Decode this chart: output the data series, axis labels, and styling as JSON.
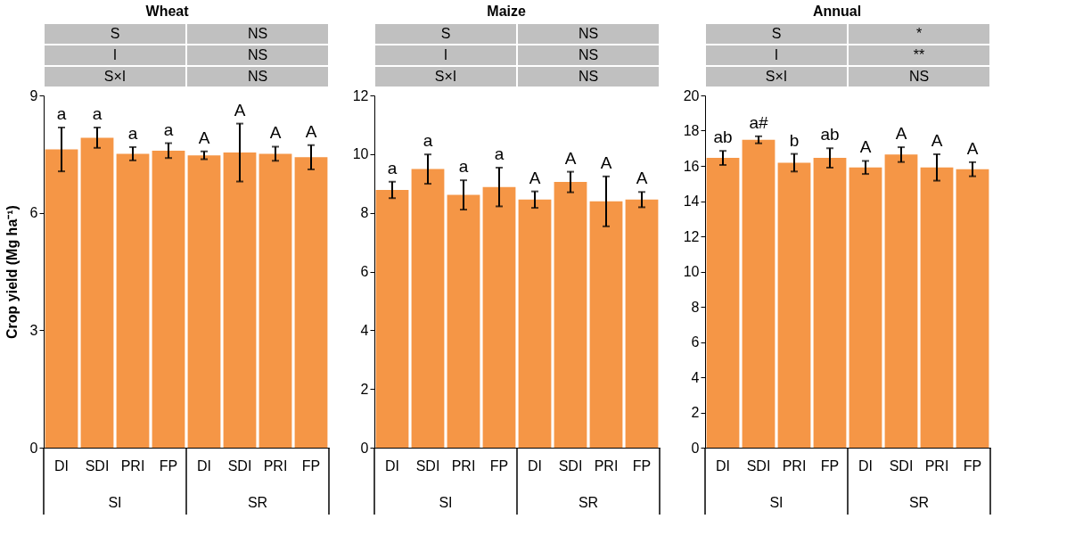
{
  "chart_data": [
    {
      "type": "bar",
      "title": "Wheat",
      "ylabel": "Crop yield (Mg ha⁻¹)",
      "categories": [
        "DI",
        "SDI",
        "PRI",
        "FP",
        "DI",
        "SDI",
        "PRI",
        "FP"
      ],
      "color": "#f59646",
      "values": [
        7.62,
        7.92,
        7.51,
        7.59,
        7.47,
        7.54,
        7.51,
        7.42
      ],
      "errors": [
        0.56,
        0.26,
        0.17,
        0.19,
        0.1,
        0.74,
        0.18,
        0.31
      ],
      "value_labels": [
        "a",
        "a",
        "a",
        "a",
        "A",
        "A",
        "A",
        "A"
      ],
      "ylim": [
        0,
        9
      ],
      "yticks": [
        0,
        3,
        6,
        9
      ],
      "annotations": [
        "S",
        "NS",
        "I",
        "NS",
        "S×I",
        "NS",
        "SI",
        "SR"
      ]
    },
    {
      "type": "bar",
      "title": "Maize",
      "categories": [
        "DI",
        "SDI",
        "PRI",
        "FP",
        "DI",
        "SDI",
        "PRI",
        "FP"
      ],
      "color": "#f59646",
      "values": [
        8.78,
        9.49,
        8.61,
        8.88,
        8.45,
        9.05,
        8.39,
        8.45
      ],
      "errors": [
        0.28,
        0.5,
        0.5,
        0.66,
        0.28,
        0.35,
        0.85,
        0.26
      ],
      "value_labels": [
        "a",
        "a",
        "a",
        "a",
        "A",
        "A",
        "A",
        "A"
      ],
      "ylim": [
        0,
        12
      ],
      "yticks": [
        0,
        2,
        4,
        6,
        8,
        10,
        12
      ],
      "annotations": [
        "S",
        "NS",
        "I",
        "NS",
        "S×I",
        "NS",
        "SI",
        "SR"
      ]
    },
    {
      "type": "bar",
      "title": "Annual",
      "categories": [
        "DI",
        "SDI",
        "PRI",
        "FP",
        "DI",
        "SDI",
        "PRI",
        "FP"
      ],
      "color": "#f59646",
      "values": [
        16.45,
        17.48,
        16.18,
        16.45,
        15.91,
        16.64,
        15.91,
        15.81
      ],
      "errors": [
        0.4,
        0.2,
        0.5,
        0.55,
        0.37,
        0.42,
        0.75,
        0.4
      ],
      "value_labels": [
        "ab",
        "a#",
        "b",
        "ab",
        "A",
        "A",
        "A",
        "A"
      ],
      "ylim": [
        0,
        20
      ],
      "yticks": [
        0,
        2,
        4,
        6,
        8,
        10,
        12,
        14,
        16,
        18,
        20
      ],
      "annotations": [
        "S",
        "*",
        "I",
        "**",
        "S×I",
        "NS",
        "SI",
        "SR"
      ]
    }
  ]
}
